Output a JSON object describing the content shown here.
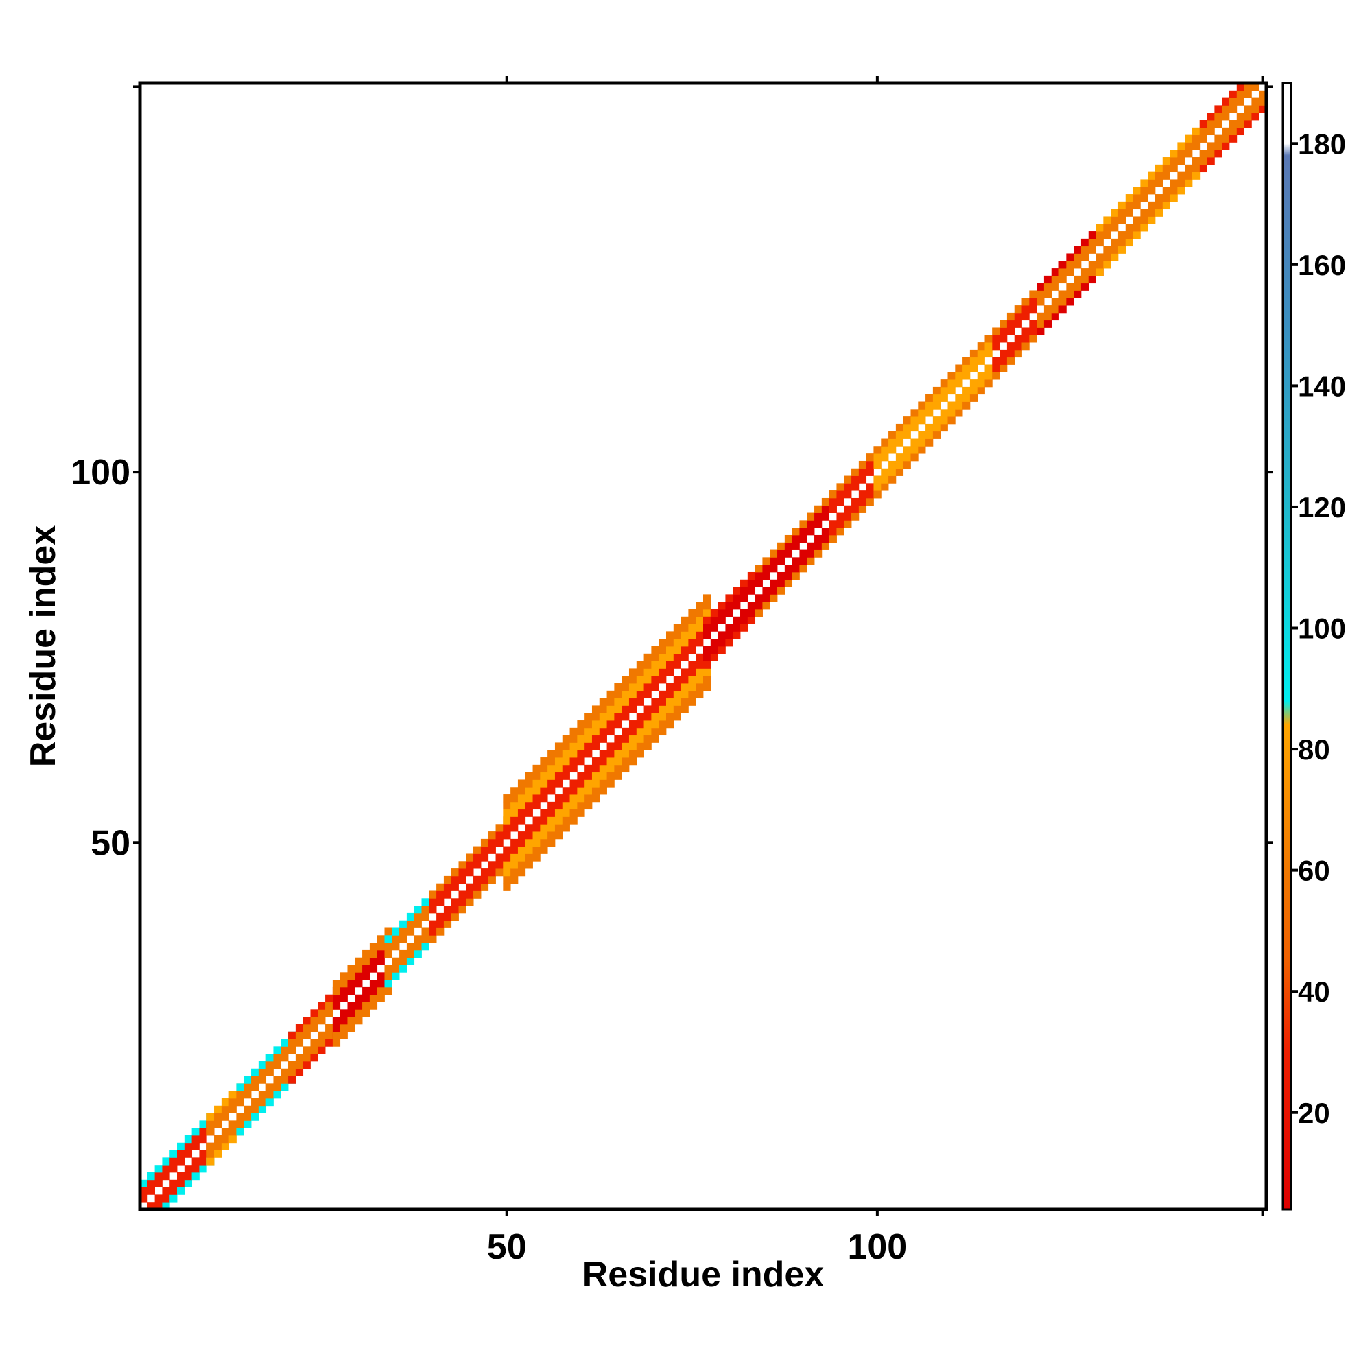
{
  "chart_data": {
    "type": "heatmap",
    "title": "",
    "xlabel": "Residue index",
    "ylabel": "Residue index",
    "n_residues": 152,
    "xlim": [
      1,
      152
    ],
    "ylim": [
      1,
      152
    ],
    "x_ticks": [
      50,
      100
    ],
    "y_ticks": [
      50,
      100
    ],
    "colorbar": {
      "range": [
        4,
        190
      ],
      "ticks": [
        20,
        40,
        60,
        80,
        100,
        120,
        140,
        160,
        180
      ],
      "scale": [
        {
          "value": 4,
          "color": "#dd0000"
        },
        {
          "value": 30,
          "color": "#ee1f00"
        },
        {
          "value": 45,
          "color": "#f06000"
        },
        {
          "value": 60,
          "color": "#f07800"
        },
        {
          "value": 84,
          "color": "#ffa500"
        },
        {
          "value": 88,
          "color": "#00eeee"
        },
        {
          "value": 120,
          "color": "#20b8cc"
        },
        {
          "value": 150,
          "color": "#3a8fc0"
        },
        {
          "value": 178,
          "color": "#5a78b4"
        },
        {
          "value": 180,
          "color": "#ffffff"
        },
        {
          "value": 190,
          "color": "#ffffff"
        }
      ]
    },
    "band": {
      "description_key": "diagonal distance band",
      "segments": [
        {
          "start": 1,
          "end": 10,
          "half_width": 3,
          "pattern": [
            "#00eeee",
            "#f07800",
            "#ee1f00",
            "#ffa500"
          ]
        },
        {
          "start": 10,
          "end": 14,
          "half_width": 3,
          "pattern": [
            "#00eeee",
            "#ffa500",
            "#f07800"
          ]
        },
        {
          "start": 14,
          "end": 21,
          "half_width": 3,
          "pattern": [
            "#ffa500",
            "#00eeee",
            "#f07800"
          ]
        },
        {
          "start": 21,
          "end": 27,
          "half_width": 3,
          "pattern": [
            "#ffa500",
            "#ee1f00",
            "#f07800"
          ]
        },
        {
          "start": 27,
          "end": 34,
          "half_width": 4,
          "pattern": [
            "#ee1f00",
            "#f07800",
            "#dd0000"
          ]
        },
        {
          "start": 34,
          "end": 40,
          "half_width": 3,
          "pattern": [
            "#ffa500",
            "#00eeee",
            "#f07800"
          ]
        },
        {
          "start": 40,
          "end": 46,
          "half_width": 3,
          "pattern": [
            "#ffa500",
            "#f07800",
            "#ee1f00"
          ]
        },
        {
          "start": 46,
          "end": 50,
          "half_width": 3,
          "pattern": [
            "#00eeee",
            "#f07800",
            "#ee1f00"
          ]
        },
        {
          "start": 50,
          "end": 77,
          "half_width": 6,
          "pattern": [
            "#00eeee",
            "#f07800",
            "#ee1f00",
            "#dd0000",
            "#ffa500"
          ]
        },
        {
          "start": 77,
          "end": 84,
          "half_width": 3,
          "pattern": [
            "#ffa500",
            "#ee1f00",
            "#dd0000"
          ]
        },
        {
          "start": 84,
          "end": 94,
          "half_width": 3,
          "pattern": [
            "#ee1f00",
            "#f07800",
            "#dd0000"
          ]
        },
        {
          "start": 94,
          "end": 100,
          "half_width": 3,
          "pattern": [
            "#00eeee",
            "#f07800",
            "#ee1f00"
          ]
        },
        {
          "start": 100,
          "end": 116,
          "half_width": 3,
          "pattern": [
            "#ee1f00",
            "#f07800",
            "#ffa500"
          ]
        },
        {
          "start": 116,
          "end": 122,
          "half_width": 3,
          "pattern": [
            "#00eeee",
            "#f07800",
            "#ee1f00"
          ]
        },
        {
          "start": 122,
          "end": 130,
          "half_width": 3,
          "pattern": [
            "#ee1f00",
            "#dd0000",
            "#f07800"
          ]
        },
        {
          "start": 130,
          "end": 144,
          "half_width": 3,
          "pattern": [
            "#00eeee",
            "#ffa500",
            "#f07800"
          ]
        },
        {
          "start": 144,
          "end": 152,
          "half_width": 3,
          "pattern": [
            "#ffa500",
            "#ee1f00",
            "#f07800"
          ]
        }
      ]
    },
    "grid": false,
    "legend": "colorbar-right"
  }
}
